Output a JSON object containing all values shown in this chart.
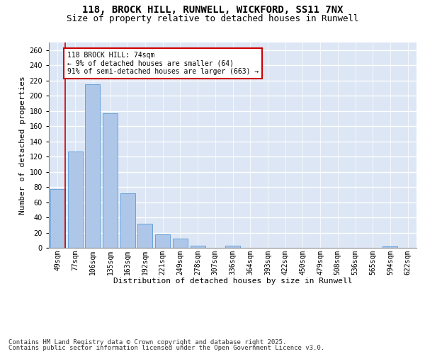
{
  "title_line1": "118, BROCK HILL, RUNWELL, WICKFORD, SS11 7NX",
  "title_line2": "Size of property relative to detached houses in Runwell",
  "xlabel": "Distribution of detached houses by size in Runwell",
  "ylabel": "Number of detached properties",
  "categories": [
    "49sqm",
    "77sqm",
    "106sqm",
    "135sqm",
    "163sqm",
    "192sqm",
    "221sqm",
    "249sqm",
    "278sqm",
    "307sqm",
    "336sqm",
    "364sqm",
    "393sqm",
    "422sqm",
    "450sqm",
    "479sqm",
    "508sqm",
    "536sqm",
    "565sqm",
    "594sqm",
    "622sqm"
  ],
  "values": [
    77,
    127,
    215,
    177,
    72,
    32,
    18,
    12,
    3,
    0,
    3,
    0,
    0,
    0,
    0,
    0,
    0,
    0,
    0,
    2,
    0
  ],
  "bar_color": "#aec6e8",
  "bar_edge_color": "#5b9bd5",
  "annotation_box_text": "118 BROCK HILL: 74sqm\n← 9% of detached houses are smaller (64)\n91% of semi-detached houses are larger (663) →",
  "vline_color": "#cc0000",
  "annotation_rect_color": "#cc0000",
  "background_color": "#dce6f5",
  "grid_color": "#ffffff",
  "ylim": [
    0,
    270
  ],
  "yticks": [
    0,
    20,
    40,
    60,
    80,
    100,
    120,
    140,
    160,
    180,
    200,
    220,
    240,
    260
  ],
  "footer_line1": "Contains HM Land Registry data © Crown copyright and database right 2025.",
  "footer_line2": "Contains public sector information licensed under the Open Government Licence v3.0.",
  "title_fontsize": 10,
  "subtitle_fontsize": 9,
  "axis_label_fontsize": 8,
  "tick_fontsize": 7,
  "footer_fontsize": 6.5
}
